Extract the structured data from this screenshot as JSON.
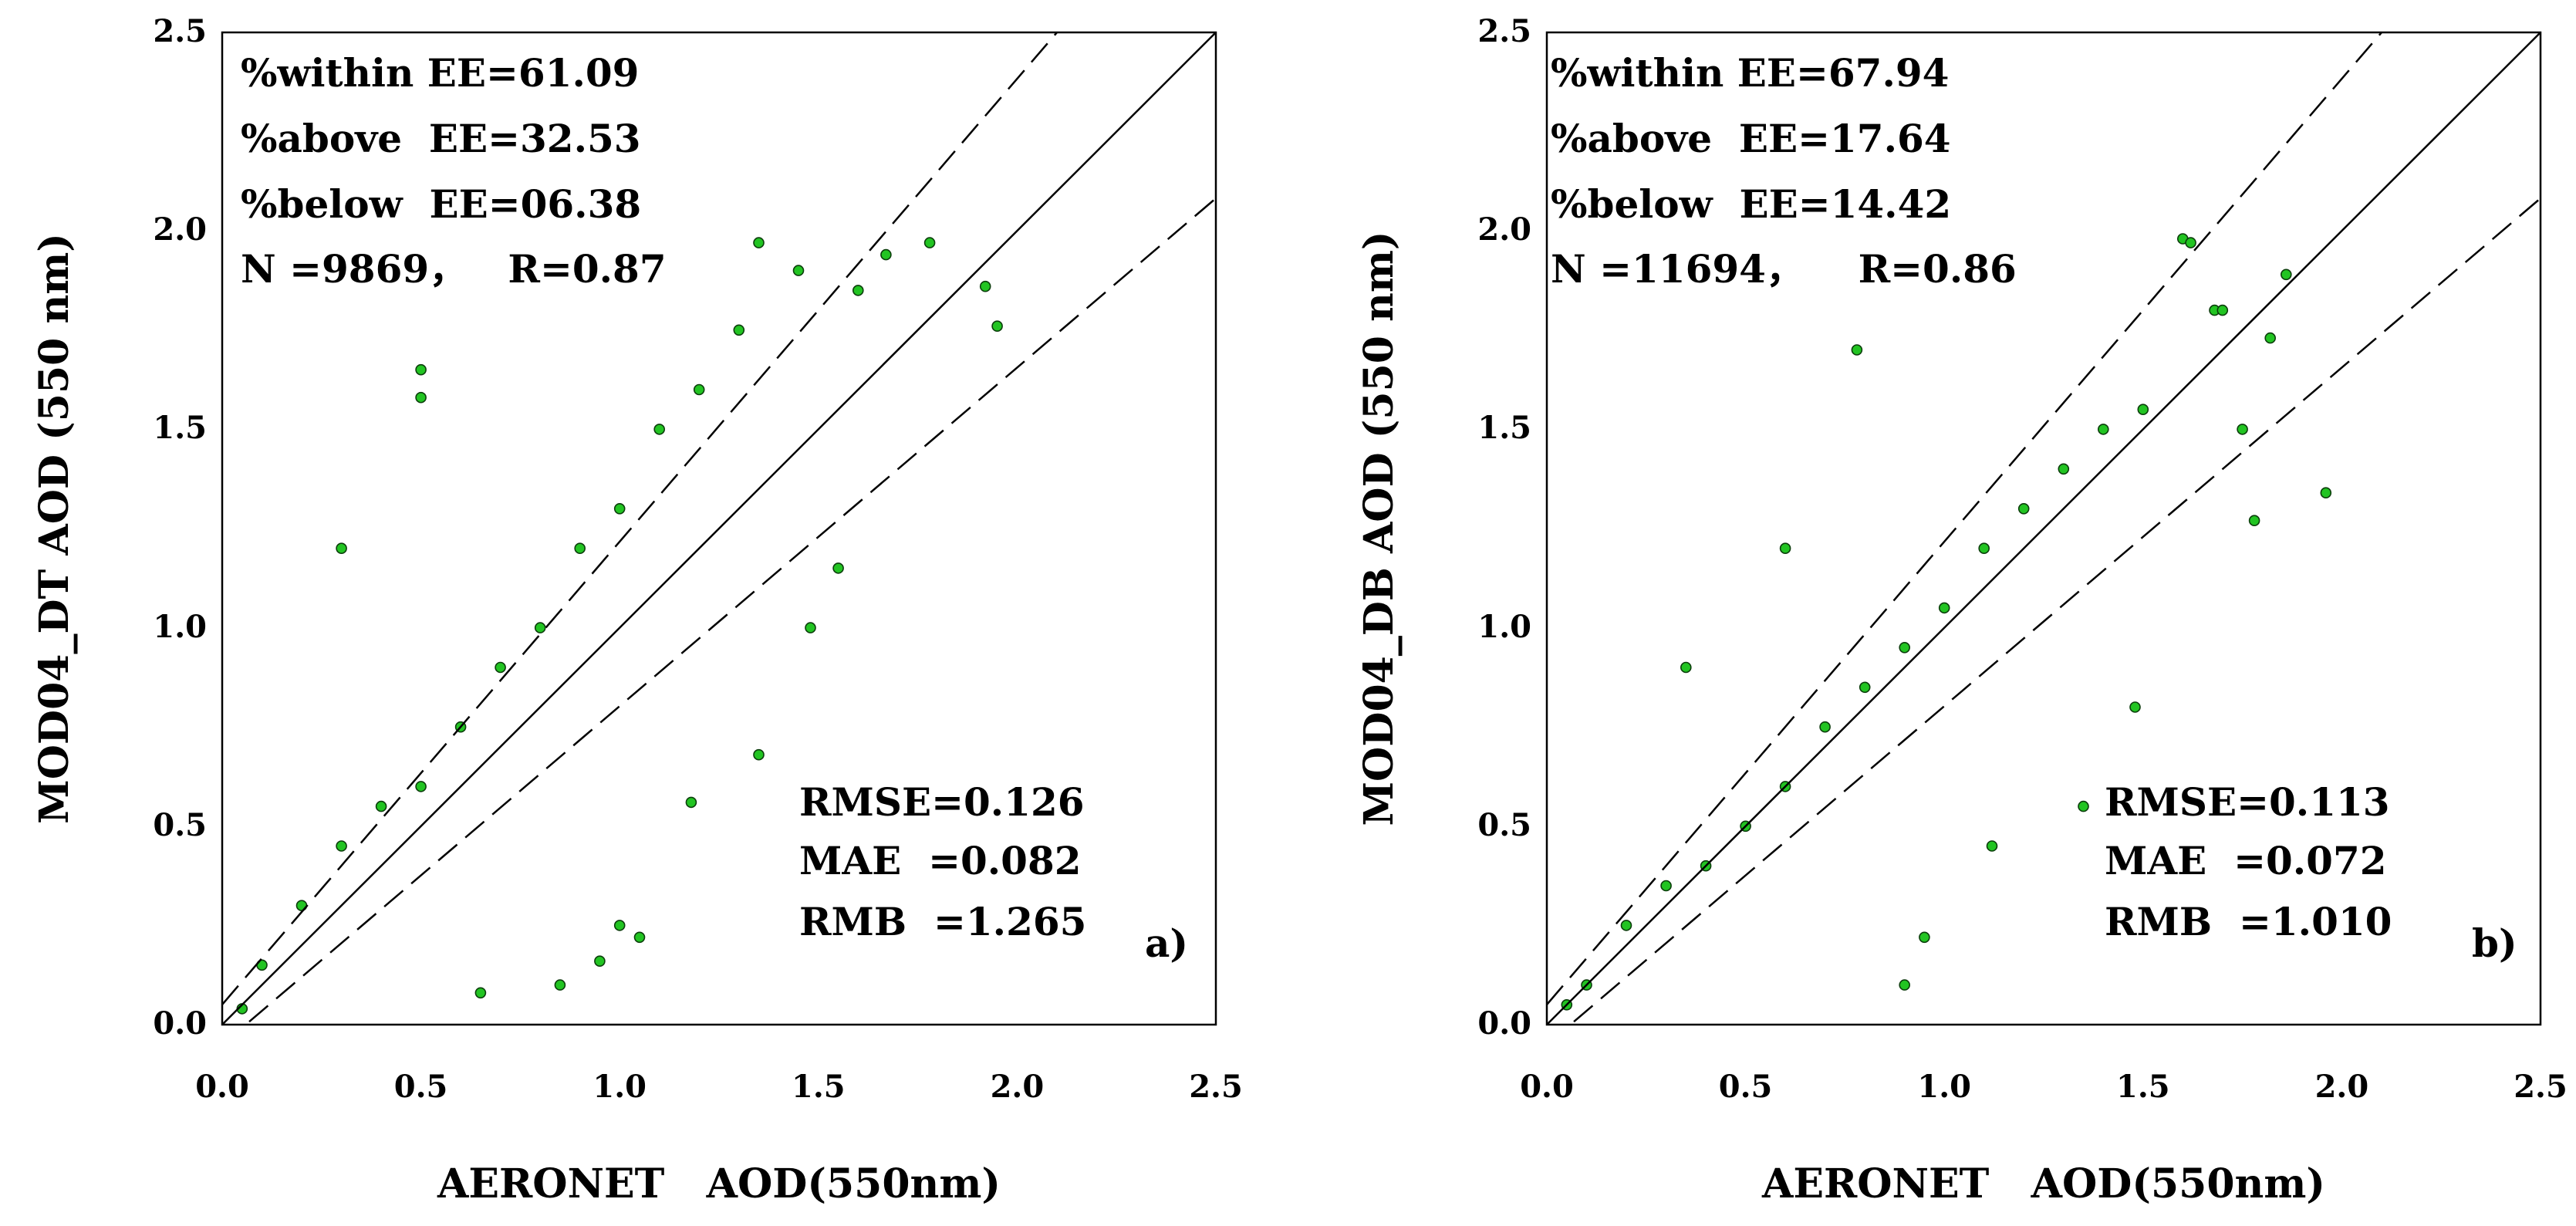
{
  "chart_data": [
    {
      "type": "scatter",
      "panel_label": "a)",
      "xlabel": "AERONET   AOD(550nm)",
      "ylabel": "MOD04_DT AOD (550 nm)",
      "xlim": [
        0,
        2.5
      ],
      "ylim": [
        0,
        2.5
      ],
      "xticks": [
        "0.0",
        "0.5",
        "1.0",
        "1.5",
        "2.0",
        "2.5"
      ],
      "yticks": [
        "0.0",
        "0.5",
        "1.0",
        "1.5",
        "2.0",
        "2.5"
      ],
      "marker_color": "#22c422",
      "marker_edge": "#0b3d0b",
      "reference_lines": {
        "one_to_one": "y = x",
        "ee_upper": "y = 0.05 + 1.15x",
        "ee_lower": "y = -0.05 + 0.85x"
      },
      "stats_top": [
        "%within EE=61.09",
        "%above  EE=32.53",
        "%below  EE=06.38",
        "N =9869，   R=0.87"
      ],
      "stats_bottom": [
        "RMSE=0.126",
        "MAE  =0.082",
        "RMB  =1.265"
      ],
      "n": 9869,
      "r": 0.87,
      "rmse": 0.126,
      "mae": 0.082,
      "rmb": 1.265,
      "pct_within_ee": 61.09,
      "pct_above_ee": 32.53,
      "pct_below_ee": 6.38,
      "sampled_points": [
        [
          0.05,
          0.04
        ],
        [
          0.1,
          0.15
        ],
        [
          0.2,
          0.3
        ],
        [
          0.3,
          0.45
        ],
        [
          0.4,
          0.55
        ],
        [
          0.5,
          0.6
        ],
        [
          0.6,
          0.75
        ],
        [
          0.7,
          0.9
        ],
        [
          0.8,
          1.0
        ],
        [
          0.9,
          1.2
        ],
        [
          1.0,
          1.3
        ],
        [
          1.1,
          1.5
        ],
        [
          1.2,
          1.6
        ],
        [
          1.3,
          1.75
        ],
        [
          1.35,
          1.97
        ],
        [
          1.45,
          1.9
        ],
        [
          1.6,
          1.85
        ],
        [
          1.67,
          1.94
        ],
        [
          1.78,
          1.97
        ],
        [
          1.92,
          1.86
        ],
        [
          1.95,
          1.76
        ],
        [
          0.5,
          1.65
        ],
        [
          0.5,
          1.58
        ],
        [
          1.55,
          1.15
        ],
        [
          1.48,
          1.0
        ],
        [
          1.35,
          0.68
        ],
        [
          1.18,
          0.56
        ],
        [
          1.0,
          0.25
        ],
        [
          1.05,
          0.22
        ],
        [
          0.95,
          0.16
        ],
        [
          0.85,
          0.1
        ],
        [
          0.65,
          0.08
        ],
        [
          0.3,
          1.2
        ]
      ]
    },
    {
      "type": "scatter",
      "panel_label": "b)",
      "xlabel": "AERONET   AOD(550nm)",
      "ylabel": "MOD04_DB AOD (550 nm)",
      "xlim": [
        0,
        2.5
      ],
      "ylim": [
        0,
        2.5
      ],
      "xticks": [
        "0.0",
        "0.5",
        "1.0",
        "1.5",
        "2.0",
        "2.5"
      ],
      "yticks": [
        "0.0",
        "0.5",
        "1.0",
        "1.5",
        "2.0",
        "2.5"
      ],
      "marker_color": "#22c422",
      "marker_edge": "#0b3d0b",
      "reference_lines": {
        "one_to_one": "y = x",
        "ee_upper": "y = 0.05 + 1.15x",
        "ee_lower": "y = -0.05 + 0.85x"
      },
      "stats_top": [
        "%within EE=67.94",
        "%above  EE=17.64",
        "%below  EE=14.42",
        "N =11694，    R=0.86"
      ],
      "stats_bottom": [
        "RMSE=0.113",
        "MAE  =0.072",
        "RMB  =1.010"
      ],
      "n": 11694,
      "r": 0.86,
      "rmse": 0.113,
      "mae": 0.072,
      "rmb": 1.01,
      "pct_within_ee": 67.94,
      "pct_above_ee": 17.64,
      "pct_below_ee": 14.42,
      "sampled_points": [
        [
          0.05,
          0.05
        ],
        [
          0.1,
          0.1
        ],
        [
          0.2,
          0.25
        ],
        [
          0.3,
          0.35
        ],
        [
          0.4,
          0.4
        ],
        [
          0.5,
          0.5
        ],
        [
          0.6,
          0.6
        ],
        [
          0.7,
          0.75
        ],
        [
          0.8,
          0.85
        ],
        [
          0.9,
          0.95
        ],
        [
          1.0,
          1.05
        ],
        [
          1.1,
          1.2
        ],
        [
          1.2,
          1.3
        ],
        [
          1.3,
          1.4
        ],
        [
          1.4,
          1.5
        ],
        [
          1.5,
          1.55
        ],
        [
          1.6,
          1.98
        ],
        [
          1.62,
          1.97
        ],
        [
          1.68,
          1.8
        ],
        [
          1.7,
          1.8
        ],
        [
          1.75,
          1.5
        ],
        [
          1.78,
          1.27
        ],
        [
          1.82,
          1.73
        ],
        [
          1.86,
          1.89
        ],
        [
          1.96,
          1.34
        ],
        [
          0.78,
          1.7
        ],
        [
          0.6,
          1.2
        ],
        [
          0.35,
          0.9
        ],
        [
          0.9,
          0.1
        ],
        [
          0.95,
          0.22
        ],
        [
          1.12,
          0.45
        ],
        [
          1.48,
          0.8
        ],
        [
          1.35,
          0.55
        ]
      ]
    }
  ]
}
